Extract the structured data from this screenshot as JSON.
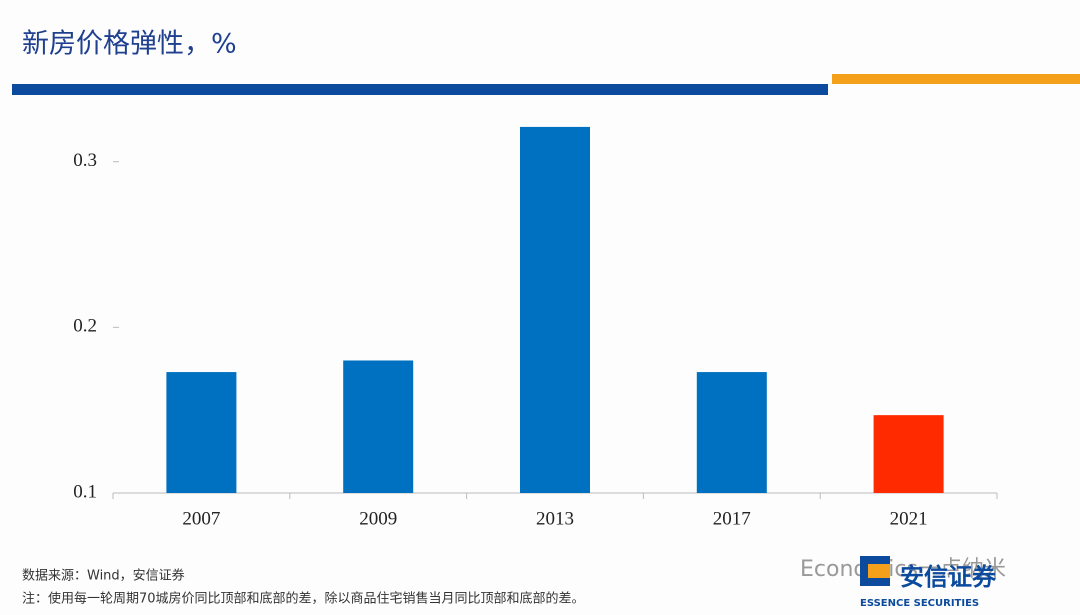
{
  "chart_data": {
    "type": "bar",
    "title": "新房价格弹性，%",
    "categories": [
      "2007",
      "2009",
      "2013",
      "2017",
      "2021"
    ],
    "values": [
      0.173,
      0.18,
      0.321,
      0.173,
      0.147
    ],
    "colors": [
      "#0070c0",
      "#0070c0",
      "#0070c0",
      "#0070c0",
      "#ff2a00"
    ],
    "ylim": [
      0.1,
      0.33
    ],
    "yticks": [
      0.1,
      0.2,
      0.3
    ],
    "grid": false
  },
  "source": "数据来源：Wind，安信证券",
  "note": "注：使用每一轮周期70城房价同比顶部和底部的差，除以商品住宅销售当月同比顶部和底部的差。",
  "watermark": "Economics一点纳米",
  "logo": {
    "name": "安信证券",
    "english": "ESSENCE SECURITIES"
  }
}
